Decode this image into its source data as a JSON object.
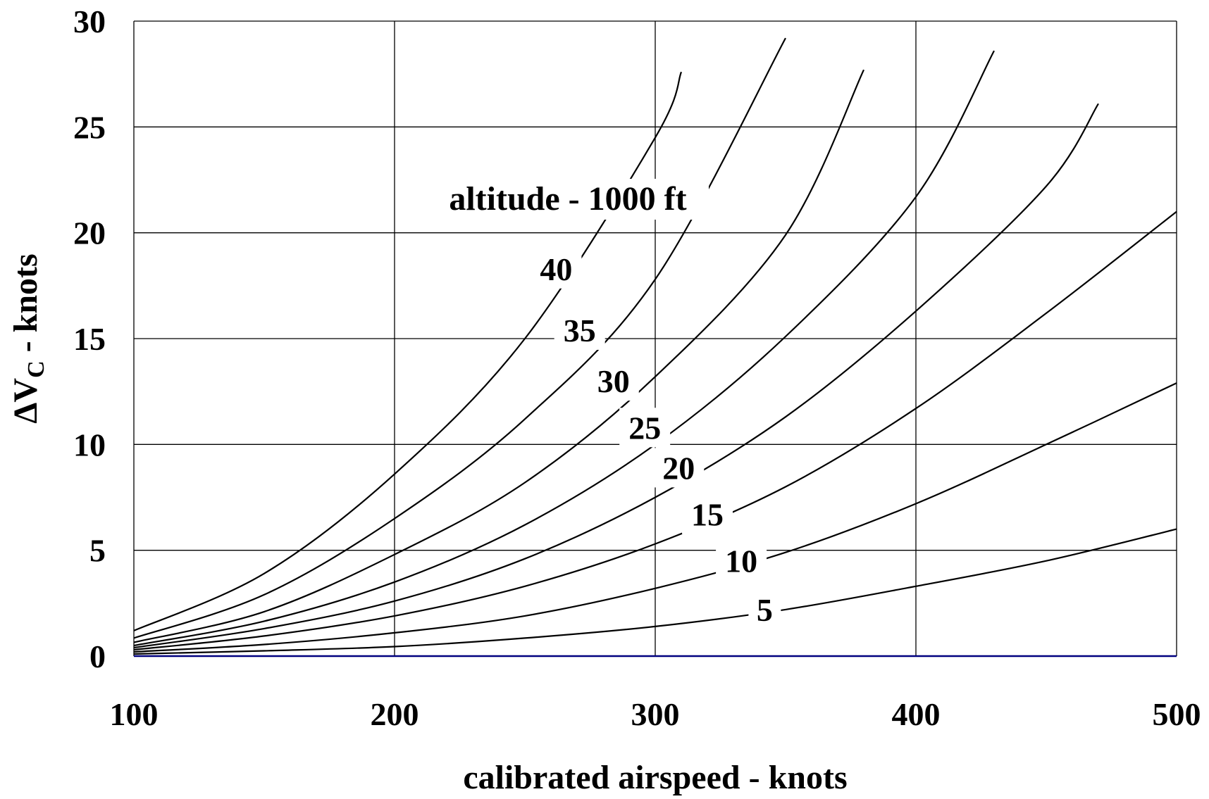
{
  "chart_data": {
    "type": "line",
    "xlabel": "calibrated airspeed - knots",
    "ylabel_prefix": "ΔV",
    "ylabel_sub": "C",
    "ylabel_suffix": " - knots",
    "xlim": [
      100,
      500
    ],
    "ylim": [
      0,
      30
    ],
    "xticks": [
      100,
      200,
      300,
      400,
      500
    ],
    "yticks": [
      0,
      5,
      10,
      15,
      20,
      25,
      30
    ],
    "grid": true,
    "baseline_color": "#00007f",
    "annotation": "altitude - 1000 ft",
    "series": [
      {
        "name": "5",
        "x": [
          100,
          150,
          200,
          250,
          300,
          350,
          400,
          450,
          500
        ],
        "y": [
          0.1,
          0.25,
          0.45,
          0.85,
          1.4,
          2.2,
          3.3,
          4.5,
          6.0
        ],
        "label_at": [
          342,
          2.2
        ]
      },
      {
        "name": "10",
        "x": [
          100,
          150,
          200,
          250,
          300,
          350,
          400,
          450,
          500
        ],
        "y": [
          0.2,
          0.55,
          1.1,
          1.9,
          3.2,
          4.9,
          7.2,
          10.0,
          12.9
        ],
        "label_at": [
          333,
          4.5
        ]
      },
      {
        "name": "15",
        "x": [
          100,
          150,
          200,
          250,
          300,
          350,
          400,
          450,
          500
        ],
        "y": [
          0.3,
          0.95,
          1.9,
          3.3,
          5.3,
          8.0,
          11.7,
          16.2,
          21.0
        ],
        "label_at": [
          320,
          6.7
        ]
      },
      {
        "name": "20",
        "x": [
          100,
          150,
          200,
          250,
          300,
          350,
          400,
          450,
          470
        ],
        "y": [
          0.4,
          1.3,
          2.6,
          4.6,
          7.5,
          11.3,
          16.3,
          22.2,
          26.1
        ],
        "label_at": [
          309,
          8.9
        ]
      },
      {
        "name": "25",
        "x": [
          100,
          150,
          200,
          250,
          300,
          350,
          400,
          430
        ],
        "y": [
          0.5,
          1.65,
          3.5,
          6.2,
          10.0,
          15.1,
          21.7,
          28.6
        ],
        "label_at": [
          296,
          10.8
        ]
      },
      {
        "name": "30",
        "x": [
          100,
          150,
          200,
          250,
          300,
          350,
          380
        ],
        "y": [
          0.65,
          2.1,
          4.8,
          8.2,
          13.2,
          19.9,
          27.7
        ],
        "label_at": [
          284,
          13.0
        ]
      },
      {
        "name": "35",
        "x": [
          100,
          150,
          200,
          250,
          300,
          350
        ],
        "y": [
          0.85,
          2.9,
          6.5,
          11.2,
          17.8,
          29.2
        ],
        "label_at": [
          271,
          15.4
        ]
      },
      {
        "name": "40",
        "x": [
          100,
          150,
          200,
          250,
          300,
          310
        ],
        "y": [
          1.2,
          3.9,
          8.6,
          15.0,
          24.5,
          27.6
        ],
        "label_at": [
          262,
          18.3
        ]
      }
    ]
  }
}
